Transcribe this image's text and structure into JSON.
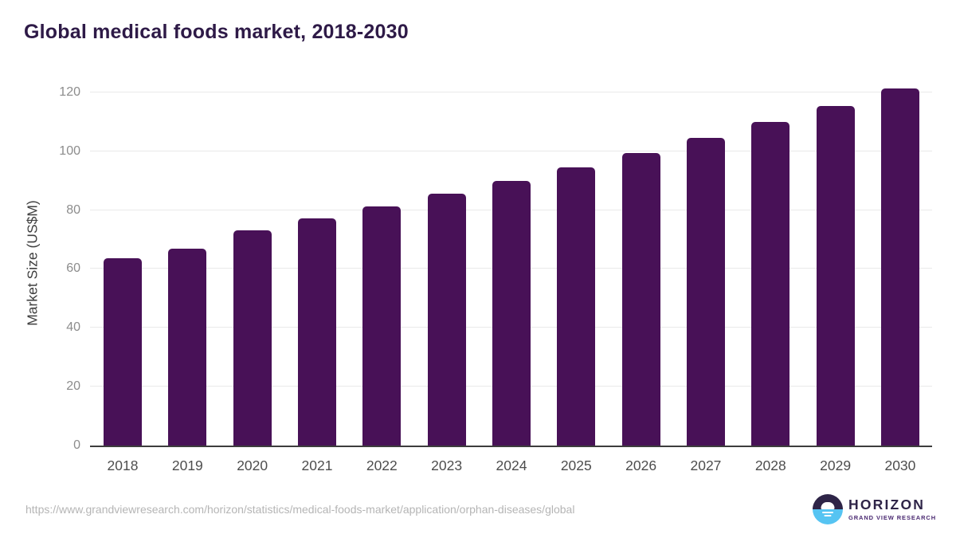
{
  "title": "Global medical foods market, 2018-2030",
  "chart_data": {
    "type": "bar",
    "title": "Global medical foods market, 2018-2030",
    "categories": [
      "2018",
      "2019",
      "2020",
      "2021",
      "2022",
      "2023",
      "2024",
      "2025",
      "2026",
      "2027",
      "2028",
      "2029",
      "2030"
    ],
    "values": [
      63.5,
      67.0,
      73.2,
      77.1,
      81.1,
      85.5,
      89.9,
      94.4,
      99.5,
      104.5,
      109.9,
      115.3,
      121.3
    ],
    "xlabel": "",
    "ylabel": "Market Size (US$M)",
    "ylim": [
      0,
      124
    ],
    "yticks": [
      0,
      20,
      40,
      60,
      80,
      100,
      120
    ],
    "grid": true,
    "legend": "none",
    "bar_color": "#481157"
  },
  "colors": {
    "title_text": "#2e1a47",
    "bar": "#481157",
    "y_tick_text": "#8c8c8c",
    "x_tick_text": "#4d4d4d",
    "axis_line": "#3d3d3d",
    "gridline": "#e9e9e9",
    "url_text": "#b5b5b5",
    "logo_navy": "#2e2447",
    "logo_purple": "#4b2a72",
    "logo_blue": "#56c4f2"
  },
  "footer": {
    "source_url": "https://www.grandviewresearch.com/horizon/statistics/medical-foods-market/application/orphan-diseases/global",
    "logo": {
      "icon": "sunrise-horizon-circle",
      "name": "HORIZON",
      "subtitle": "GRAND VIEW RESEARCH"
    }
  }
}
